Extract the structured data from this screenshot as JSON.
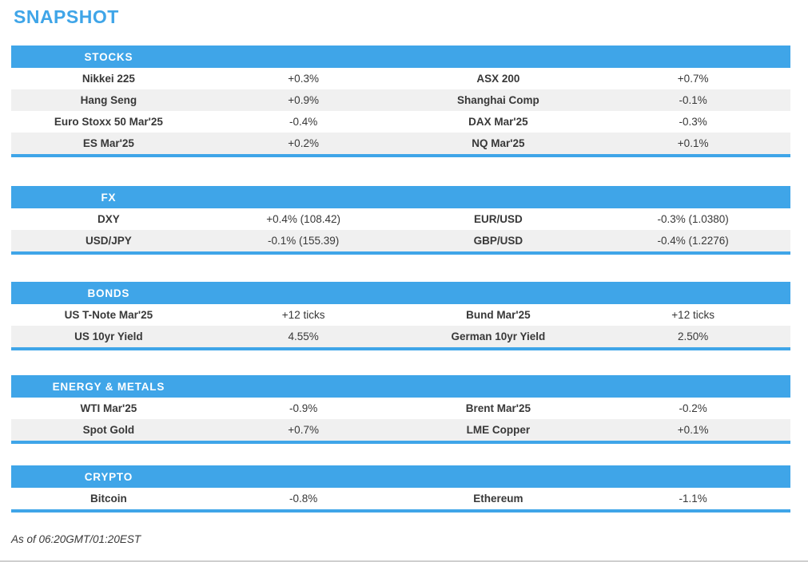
{
  "page": {
    "title": "SNAPSHOT",
    "footer": "As of 06:20GMT/01:20EST"
  },
  "colors": {
    "accent": "#3fa5e8",
    "row_alt": "#f0f0f0",
    "text": "#383838"
  },
  "sections": [
    {
      "header": "STOCKS",
      "rows": [
        [
          "Nikkei 225",
          "+0.3%",
          "ASX 200",
          "+0.7%"
        ],
        [
          "Hang Seng",
          "+0.9%",
          "Shanghai Comp",
          "-0.1%"
        ],
        [
          "Euro Stoxx 50 Mar'25",
          "-0.4%",
          "DAX Mar'25",
          "-0.3%"
        ],
        [
          "ES Mar'25",
          "+0.2%",
          "NQ Mar'25",
          "+0.1%"
        ]
      ]
    },
    {
      "header": "FX",
      "rows": [
        [
          "DXY",
          "+0.4% (108.42)",
          "EUR/USD",
          "-0.3% (1.0380)"
        ],
        [
          "USD/JPY",
          "-0.1% (155.39)",
          "GBP/USD",
          "-0.4% (1.2276)"
        ]
      ]
    },
    {
      "header": "BONDS",
      "rows": [
        [
          "US T-Note Mar'25",
          "+12 ticks",
          "Bund Mar'25",
          "+12 ticks"
        ],
        [
          "US 10yr Yield",
          "4.55%",
          "German 10yr Yield",
          "2.50%"
        ]
      ]
    },
    {
      "header": "ENERGY & METALS",
      "rows": [
        [
          "WTI Mar'25",
          "-0.9%",
          "Brent Mar'25",
          "-0.2%"
        ],
        [
          "Spot Gold",
          "+0.7%",
          "LME Copper",
          "+0.1%"
        ]
      ]
    },
    {
      "header": "CRYPTO",
      "rows": [
        [
          "Bitcoin",
          "-0.8%",
          "Ethereum",
          "-1.1%"
        ]
      ]
    }
  ]
}
